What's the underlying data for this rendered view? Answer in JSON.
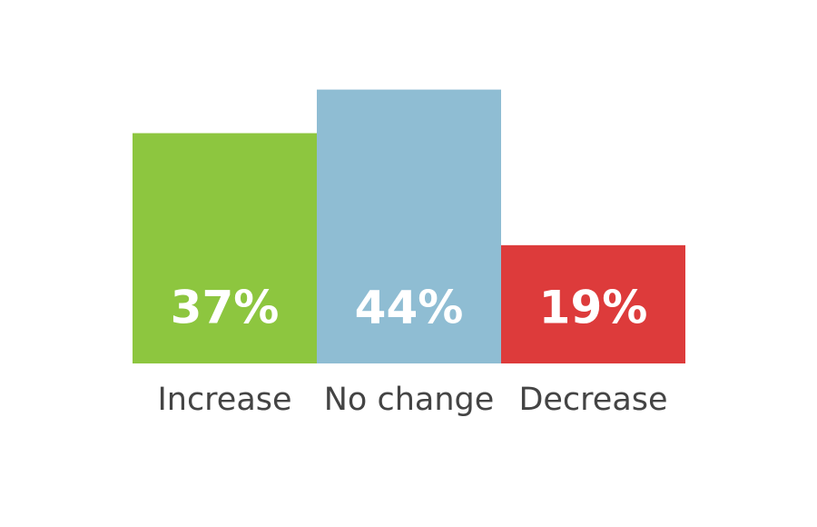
{
  "chart_data": {
    "type": "bar",
    "categories": [
      "Increase",
      "No change",
      "Decrease"
    ],
    "values": [
      37,
      44,
      19
    ],
    "value_labels": [
      "37%",
      "44%",
      "19%"
    ],
    "colors": [
      "#8dc63f",
      "#8fbdd3",
      "#dd3b3b"
    ]
  }
}
